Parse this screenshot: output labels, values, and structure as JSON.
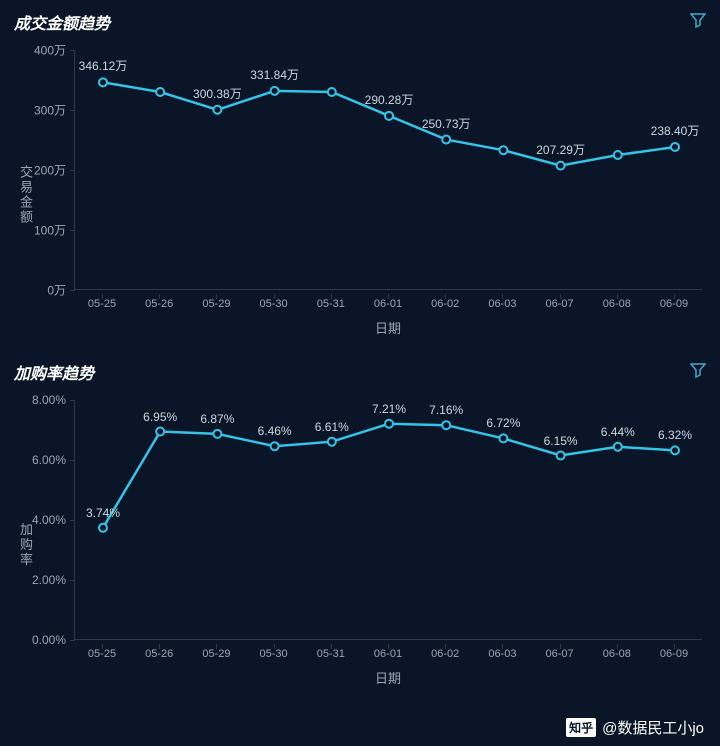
{
  "background_color": "#0a1628",
  "text_color": "#9aa5b1",
  "line_color": "#33c4e8",
  "marker_fill": "#0a1628",
  "marker_stroke": "#33c4e8",
  "grid_color": "#2a3a4f",
  "charts": [
    {
      "title": "成交金额趋势",
      "y_label": "交易金额",
      "x_label": "日期",
      "y_ticks": [
        "0万",
        "100万",
        "200万",
        "300万",
        "400万"
      ],
      "y_min": 0,
      "y_max": 400,
      "categories": [
        "05-25",
        "05-26",
        "05-29",
        "05-30",
        "05-31",
        "06-01",
        "06-02",
        "06-03",
        "06-07",
        "06-08",
        "06-09"
      ],
      "values": [
        346.12,
        330,
        300.38,
        331.84,
        330,
        290.28,
        250.73,
        233,
        207.29,
        225,
        238.4
      ],
      "point_labels": [
        "346.12万",
        "",
        "300.38万",
        "331.84万",
        "",
        "290.28万",
        "250.73万",
        "",
        "207.29万",
        "",
        "238.40万"
      ]
    },
    {
      "title": "加购率趋势",
      "y_label": "加购率",
      "x_label": "日期",
      "y_ticks": [
        "0.00%",
        "2.00%",
        "4.00%",
        "6.00%",
        "8.00%"
      ],
      "y_min": 0,
      "y_max": 8,
      "categories": [
        "05-25",
        "05-26",
        "05-29",
        "05-30",
        "05-31",
        "06-01",
        "06-02",
        "06-03",
        "06-07",
        "06-08",
        "06-09"
      ],
      "values": [
        3.74,
        6.95,
        6.87,
        6.46,
        6.61,
        7.21,
        7.16,
        6.72,
        6.15,
        6.44,
        6.32
      ],
      "point_labels": [
        "3.74%",
        "6.95%",
        "6.87%",
        "6.46%",
        "6.61%",
        "7.21%",
        "7.16%",
        "6.72%",
        "6.15%",
        "6.44%",
        "6.32%"
      ]
    }
  ],
  "watermark": {
    "logo": "知乎",
    "user": "@数据民工小jo"
  }
}
